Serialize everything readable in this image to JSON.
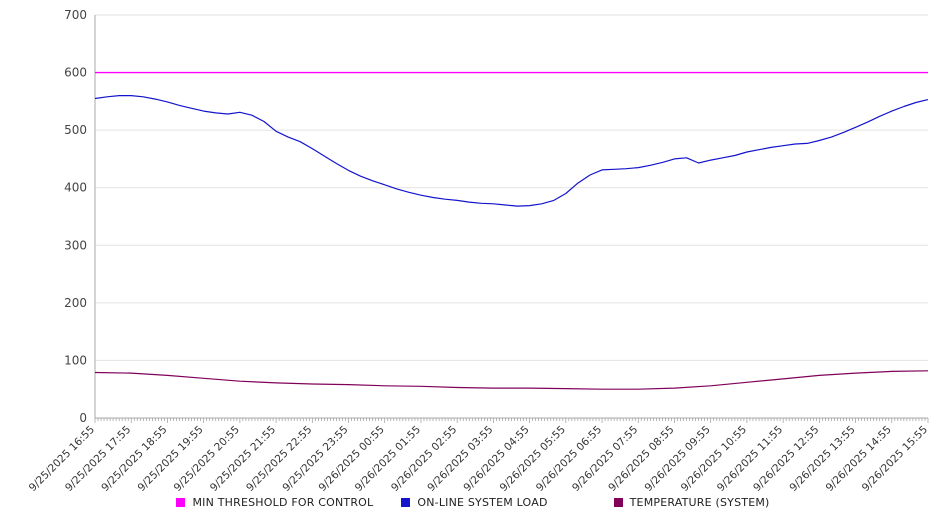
{
  "chart_data": {
    "type": "line",
    "title": "",
    "xlabel": "",
    "ylabel": "",
    "grid": "horizontal",
    "legend_position": "bottom",
    "y_axis": {
      "min": 0,
      "max": 700,
      "step": 100
    },
    "x_axis": {
      "labels": [
        "9/25/2025 16:55",
        "9/25/2025 17:55",
        "9/25/2025 18:55",
        "9/25/2025 19:55",
        "9/25/2025 20:55",
        "9/25/2025 21:55",
        "9/25/2025 22:55",
        "9/25/2025 23:55",
        "9/26/2025 00:55",
        "9/26/2025 01:55",
        "9/26/2025 02:55",
        "9/26/2025 03:55",
        "9/26/2025 04:55",
        "9/26/2025 05:55",
        "9/26/2025 06:55",
        "9/26/2025 07:55",
        "9/26/2025 08:55",
        "9/26/2025 09:55",
        "9/26/2025 10:55",
        "9/26/2025 11:55",
        "9/26/2025 12:55",
        "9/26/2025 13:55",
        "9/26/2025 14:55",
        "9/26/2025 15:55"
      ],
      "minor_tick_minutes": 5
    },
    "series": [
      {
        "name": "MIN THRESHOLD FOR CONTROL",
        "color": "#ff00ff",
        "values": [
          600,
          600
        ]
      },
      {
        "name": "ON-LINE SYSTEM LOAD",
        "color": "#1414cc",
        "values": [
          555,
          558,
          560,
          560,
          558,
          554,
          549,
          543,
          538,
          533,
          530,
          528,
          531,
          526,
          515,
          498,
          488,
          480,
          468,
          455,
          442,
          430,
          420,
          412,
          405,
          398,
          392,
          387,
          383,
          380,
          378,
          375,
          373,
          372,
          370,
          368,
          369,
          372,
          378,
          390,
          408,
          422,
          431,
          432,
          433,
          435,
          439,
          444,
          450,
          452,
          443,
          448,
          452,
          456,
          462,
          466,
          470,
          473,
          476,
          477,
          482,
          488,
          496,
          505,
          514,
          524,
          533,
          541,
          548,
          553
        ]
      },
      {
        "name": "TEMPERATURE (SYSTEM)",
        "color": "#80005a",
        "values": [
          79,
          78,
          74,
          69,
          64,
          61,
          59,
          58,
          56,
          55,
          53,
          52,
          52,
          51,
          50,
          50,
          52,
          56,
          62,
          68,
          74,
          78,
          81,
          82
        ]
      }
    ]
  }
}
